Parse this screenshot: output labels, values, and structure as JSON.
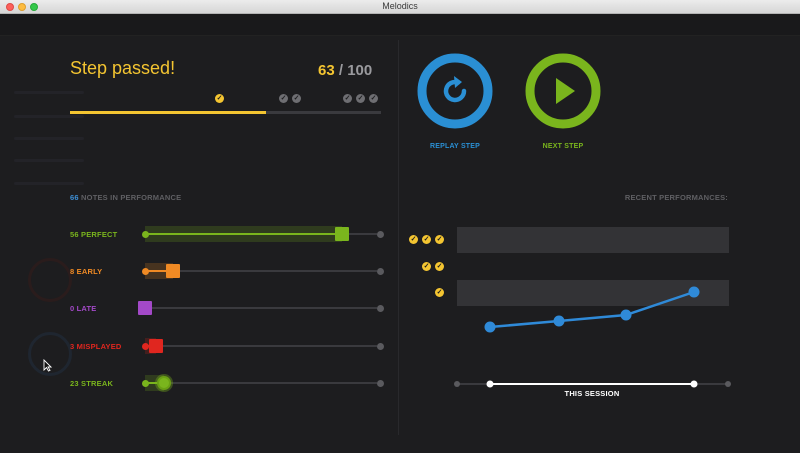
{
  "window": {
    "title": "Melodics"
  },
  "step": {
    "title": "Step passed!",
    "score": "63",
    "score_sep": " / ",
    "score_max": "100",
    "progress": 0.63
  },
  "actions": {
    "replay_label": "REPLAY STEP",
    "next_label": "NEXT STEP",
    "replay_color": "#2a8fd4",
    "next_color": "#7ab51d"
  },
  "performance": {
    "notes_count": "66",
    "notes_label": "NOTES IN PERFORMANCE",
    "stats": [
      {
        "key": "perfect",
        "label": "56 PERFECT",
        "color": "#7ab51d",
        "value": 56,
        "knob": "square"
      },
      {
        "key": "early",
        "label": "8 EARLY",
        "color": "#f08a24",
        "value": 8,
        "knob": "square"
      },
      {
        "key": "late",
        "label": "0 LATE",
        "color": "#a349c8",
        "value": 0,
        "knob": "square"
      },
      {
        "key": "misplayed",
        "label": "3 MISPLAYED",
        "color": "#e0261f",
        "value": 3,
        "knob": "square"
      },
      {
        "key": "streak",
        "label": "23 STREAK",
        "color": "#7ab51d",
        "value": 23,
        "knob": "circle"
      }
    ]
  },
  "recent": {
    "header": "RECENT PERFORMANCES:",
    "session_label": "THIS SESSION",
    "rows": [
      3,
      2,
      1
    ],
    "line_color": "#2f8ad8",
    "check_color": "#f4c531"
  }
}
